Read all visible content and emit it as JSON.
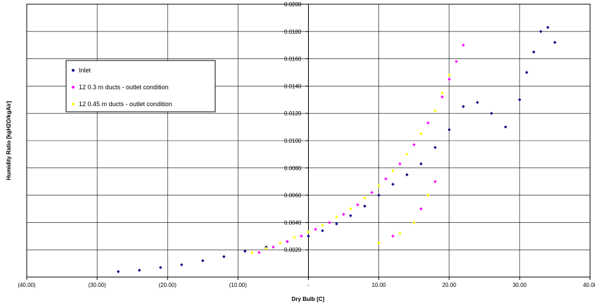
{
  "chart_data": {
    "type": "scatter",
    "title": "",
    "xlabel": "Dry Bulb [C]",
    "ylabel": "Humidity Ratio [kgH2O/kgAir]",
    "xlim": [
      -40,
      40
    ],
    "ylim": [
      0,
      0.02
    ],
    "x_ticks": [
      "(40.00)",
      "(30.00)",
      "(20.00)",
      "(10.00)",
      "-",
      "10.00",
      "20.00",
      "30.00",
      "40.00"
    ],
    "y_ticks": [
      "0.0200",
      "0.0180",
      "0.0160",
      "0.0140",
      "0.0120",
      "0.0100",
      "0.0080",
      "0.0060",
      "0.0040",
      "0.0020"
    ],
    "grid": "vertical-and-horizontal",
    "legend_position": "upper-left",
    "series": [
      {
        "name": "Inlet",
        "color": "#000080",
        "marker": "diamond",
        "points": [
          [
            -27.0,
            0.0004
          ],
          [
            -24.0,
            0.0005
          ],
          [
            -21.0,
            0.0007
          ],
          [
            -18.0,
            0.0009
          ],
          [
            -15.0,
            0.0012
          ],
          [
            -12.0,
            0.0015
          ],
          [
            -9.0,
            0.0019
          ],
          [
            -6.0,
            0.0022
          ],
          [
            -3.0,
            0.0026
          ],
          [
            0.0,
            0.003
          ],
          [
            2.0,
            0.0034
          ],
          [
            4.0,
            0.0039
          ],
          [
            6.0,
            0.0045
          ],
          [
            8.0,
            0.0052
          ],
          [
            10.0,
            0.006
          ],
          [
            12.0,
            0.0068
          ],
          [
            14.0,
            0.0075
          ],
          [
            16.0,
            0.0083
          ],
          [
            18.0,
            0.0095
          ],
          [
            20.0,
            0.0108
          ],
          [
            22.0,
            0.0125
          ],
          [
            24.0,
            0.0128
          ],
          [
            26.0,
            0.012
          ],
          [
            28.0,
            0.011
          ],
          [
            30.0,
            0.013
          ],
          [
            31.0,
            0.015
          ],
          [
            32.0,
            0.0165
          ],
          [
            33.0,
            0.018
          ],
          [
            34.0,
            0.0183
          ],
          [
            35.0,
            0.0172
          ]
        ]
      },
      {
        "name": "12 0.3 m ducts - outlet condition",
        "color": "#FF00FF",
        "marker": "diamond",
        "points": [
          [
            -7.0,
            0.0018
          ],
          [
            -5.0,
            0.0022
          ],
          [
            -3.0,
            0.0026
          ],
          [
            -1.0,
            0.003
          ],
          [
            1.0,
            0.0035
          ],
          [
            3.0,
            0.004
          ],
          [
            5.0,
            0.0046
          ],
          [
            7.0,
            0.0053
          ],
          [
            9.0,
            0.0062
          ],
          [
            11.0,
            0.0072
          ],
          [
            13.0,
            0.0083
          ],
          [
            15.0,
            0.0097
          ],
          [
            17.0,
            0.0113
          ],
          [
            19.0,
            0.0132
          ],
          [
            20.0,
            0.0145
          ],
          [
            21.0,
            0.0158
          ],
          [
            22.0,
            0.017
          ],
          [
            18.0,
            0.007
          ],
          [
            16.0,
            0.005
          ],
          [
            12.0,
            0.003
          ]
        ]
      },
      {
        "name": "12 0.45 m ducts - outlet condition",
        "color": "#FFFF00",
        "marker": "diamond",
        "points": [
          [
            -8.0,
            0.0018
          ],
          [
            -6.0,
            0.0021
          ],
          [
            -4.0,
            0.0025
          ],
          [
            -2.0,
            0.0029
          ],
          [
            0.0,
            0.0033
          ],
          [
            2.0,
            0.0038
          ],
          [
            4.0,
            0.0044
          ],
          [
            6.0,
            0.005
          ],
          [
            8.0,
            0.0058
          ],
          [
            10.0,
            0.0067
          ],
          [
            12.0,
            0.0078
          ],
          [
            14.0,
            0.009
          ],
          [
            16.0,
            0.0105
          ],
          [
            18.0,
            0.0122
          ],
          [
            19.0,
            0.0135
          ],
          [
            20.0,
            0.0148
          ],
          [
            17.0,
            0.006
          ],
          [
            15.0,
            0.004
          ],
          [
            13.0,
            0.0032
          ],
          [
            10.0,
            0.0025
          ]
        ]
      }
    ]
  }
}
